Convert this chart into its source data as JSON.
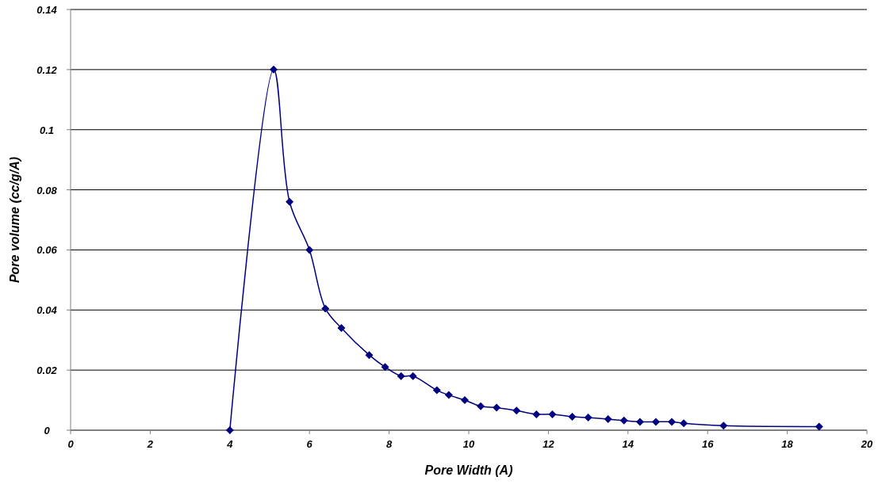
{
  "chart_data": {
    "type": "line",
    "xlabel": "Pore Width (A)",
    "ylabel": "Pore volume (cc/g/A)",
    "xlim": [
      0,
      20
    ],
    "xticks": [
      0,
      2,
      4,
      6,
      8,
      10,
      12,
      14,
      16,
      18,
      20
    ],
    "ylim": [
      0,
      0.14
    ],
    "yticks": [
      0,
      0.02,
      0.04,
      0.06,
      0.08,
      0.1,
      0.12,
      0.14
    ],
    "grid": "y",
    "marker": "diamond",
    "series": [
      {
        "color": "#000080",
        "x": [
          4,
          5.1,
          5.5,
          6,
          6.4,
          6.8,
          7.5,
          7.9,
          8.3,
          8.6,
          9.2,
          9.5,
          9.9,
          10.3,
          10.7,
          11.2,
          11.7,
          12.1,
          12.6,
          13,
          13.5,
          13.9,
          14.3,
          14.7,
          15.1,
          15.4,
          16.4,
          18.8
        ],
        "values": [
          0,
          0.12,
          0.076,
          0.06,
          0.0405,
          0.034,
          0.025,
          0.021,
          0.018,
          0.018,
          0.0133,
          0.0117,
          0.01,
          0.008,
          0.0075,
          0.0065,
          0.0053,
          0.0053,
          0.0045,
          0.0042,
          0.0037,
          0.0032,
          0.0028,
          0.0028,
          0.0028,
          0.0023,
          0.0015,
          0.0012
        ]
      }
    ]
  }
}
